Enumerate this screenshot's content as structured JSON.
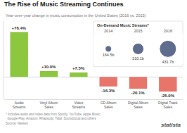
{
  "chart_data": [
    {
      "type": "bar",
      "title": "The Rise of Music Streaming Continues",
      "subtitle": "Year-over-year change in music consumption in the United States (2016 vs. 2015)",
      "categories": [
        "Audio\nStreams",
        "Vinyl Album\nSales",
        "Video\nStreams",
        "CD Album\nSales",
        "Digital Album\nSales",
        "Digital Track\nSales"
      ],
      "values": [
        76.4,
        10.0,
        7.5,
        -16.3,
        -20.1,
        -25.0
      ],
      "value_labels": [
        "+76.4%",
        "+10.0%",
        "+7.5%",
        "-16.3%",
        "-20.1%",
        "-25.0%"
      ],
      "colors": [
        "#8dc63f",
        "#8dc63f",
        "#8dc63f",
        "#e8756a",
        "#e8756a",
        "#e8756a"
      ],
      "ylim": [
        -38,
        95
      ],
      "yticks": [],
      "grid": false,
      "tick_labels": "x",
      "data_labels": true,
      "annotations": [
        "* Includes audio and video data from Spotify, YouTube, Apple Music,\n  Google Play, Amazon, Rhapsody, Tidal, Soundcloud and others",
        "Source: Nielsen",
        "statista"
      ]
    },
    {
      "type": "bubble",
      "title": "On-Demand Music Streams*",
      "categories": [
        "2014",
        "2015",
        "2016"
      ],
      "values": [
        164.5,
        310.1,
        431.7
      ],
      "value_labels": [
        "164.5b",
        "310.1b",
        "431.7b"
      ],
      "sizes": [
        18,
        32,
        48
      ],
      "color": "#1c2f5e",
      "tick_labels": "x",
      "data_labels": true
    }
  ]
}
